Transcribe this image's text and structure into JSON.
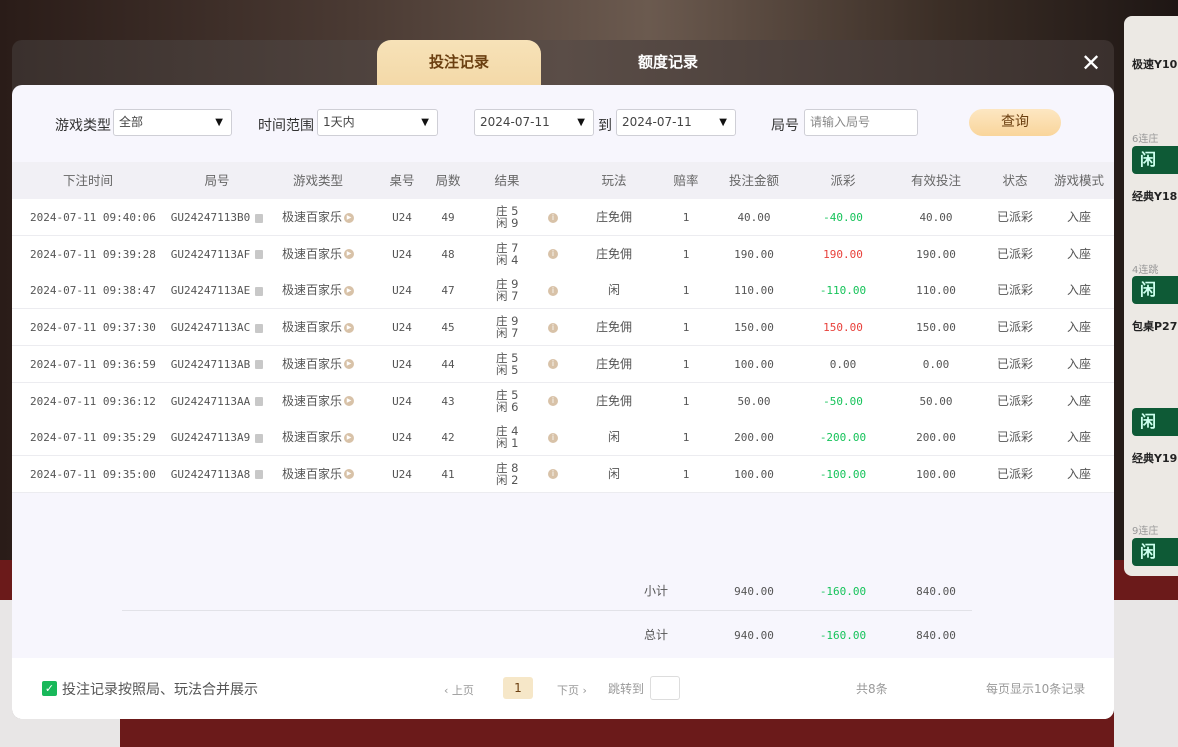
{
  "side_panel": {
    "items": [
      {
        "label": "极速Y10",
        "streak": "6连庄",
        "button": "闲"
      },
      {
        "label": "经典Y18",
        "streak": "4连跳",
        "button": "闲"
      },
      {
        "label": "包桌P27",
        "button": "闲"
      },
      {
        "label": "经典Y19",
        "streak": "9连庄",
        "button": "闲"
      }
    ]
  },
  "tabs": [
    {
      "label": "投注记录",
      "active": true
    },
    {
      "label": "额度记录",
      "active": false
    }
  ],
  "close_icon": "close-icon",
  "filters": {
    "game_type_label": "游戏类型",
    "game_type_value": "全部",
    "time_range_label": "时间范围",
    "time_range_value": "1天内",
    "date_from": "2024-07-11",
    "to_label": "到",
    "date_to": "2024-07-11",
    "round_label": "局号",
    "round_placeholder": "请输入局号",
    "query_button": "查询"
  },
  "columns": [
    "下注时间",
    "局号",
    "游戏类型",
    "桌号",
    "局数",
    "结果",
    "玩法",
    "赔率",
    "投注金额",
    "派彩",
    "有效投注",
    "状态",
    "游戏模式"
  ],
  "rows": [
    {
      "time": "2024-07-11 09:40:06",
      "round": "GU24247113B0",
      "game": "极速百家乐",
      "table": "U24",
      "num": "49",
      "banker": "庄 5",
      "player": "闲 9",
      "play": "庄免佣",
      "odds": "1",
      "bet": "40.00",
      "payout": "-40.00",
      "valid": "40.00",
      "status": "已派彩",
      "mode": "入座"
    },
    {
      "time": "2024-07-11 09:39:28",
      "round": "GU24247113AF",
      "game": "极速百家乐",
      "table": "U24",
      "num": "48",
      "banker": "庄 7",
      "player": "闲 4",
      "play": "庄免佣",
      "odds": "1",
      "bet": "190.00",
      "payout": "190.00",
      "valid": "190.00",
      "status": "已派彩",
      "mode": "入座"
    },
    {
      "time": "2024-07-11 09:38:47",
      "round": "GU24247113AE",
      "game": "极速百家乐",
      "table": "U24",
      "num": "47",
      "banker": "庄 9",
      "player": "闲 7",
      "play": "闲",
      "odds": "1",
      "bet": "110.00",
      "payout": "-110.00",
      "valid": "110.00",
      "status": "已派彩",
      "mode": "入座"
    },
    {
      "time": "2024-07-11 09:37:30",
      "round": "GU24247113AC",
      "game": "极速百家乐",
      "table": "U24",
      "num": "45",
      "banker": "庄 9",
      "player": "闲 7",
      "play": "庄免佣",
      "odds": "1",
      "bet": "150.00",
      "payout": "150.00",
      "valid": "150.00",
      "status": "已派彩",
      "mode": "入座"
    },
    {
      "time": "2024-07-11 09:36:59",
      "round": "GU24247113AB",
      "game": "极速百家乐",
      "table": "U24",
      "num": "44",
      "banker": "庄 5",
      "player": "闲 5",
      "play": "庄免佣",
      "odds": "1",
      "bet": "100.00",
      "payout": "0.00",
      "valid": "0.00",
      "status": "已派彩",
      "mode": "入座"
    },
    {
      "time": "2024-07-11 09:36:12",
      "round": "GU24247113AA",
      "game": "极速百家乐",
      "table": "U24",
      "num": "43",
      "banker": "庄 5",
      "player": "闲 6",
      "play": "庄免佣",
      "odds": "1",
      "bet": "50.00",
      "payout": "-50.00",
      "valid": "50.00",
      "status": "已派彩",
      "mode": "入座"
    },
    {
      "time": "2024-07-11 09:35:29",
      "round": "GU24247113A9",
      "game": "极速百家乐",
      "table": "U24",
      "num": "42",
      "banker": "庄 4",
      "player": "闲 1",
      "play": "闲",
      "odds": "1",
      "bet": "200.00",
      "payout": "-200.00",
      "valid": "200.00",
      "status": "已派彩",
      "mode": "入座"
    },
    {
      "time": "2024-07-11 09:35:00",
      "round": "GU24247113A8",
      "game": "极速百家乐",
      "table": "U24",
      "num": "41",
      "banker": "庄 8",
      "player": "闲 2",
      "play": "闲",
      "odds": "1",
      "bet": "100.00",
      "payout": "-100.00",
      "valid": "100.00",
      "status": "已派彩",
      "mode": "入座"
    }
  ],
  "subtotal": {
    "label": "小计",
    "bet": "940.00",
    "payout": "-160.00",
    "valid": "840.00"
  },
  "total": {
    "label": "总计",
    "bet": "940.00",
    "payout": "-160.00",
    "valid": "840.00"
  },
  "footer": {
    "merge_label": "投注记录按照局、玩法合并展示",
    "merge_checked": true,
    "prev": "‹ 上页",
    "page": "1",
    "next": "下页 ›",
    "jump_label": "跳转到",
    "total_count": "共8条",
    "per_page": "每页显示10条记录"
  },
  "colors": {
    "negative": "#16c35a",
    "positive": "#e8413b",
    "accent": "#f9d59b"
  }
}
